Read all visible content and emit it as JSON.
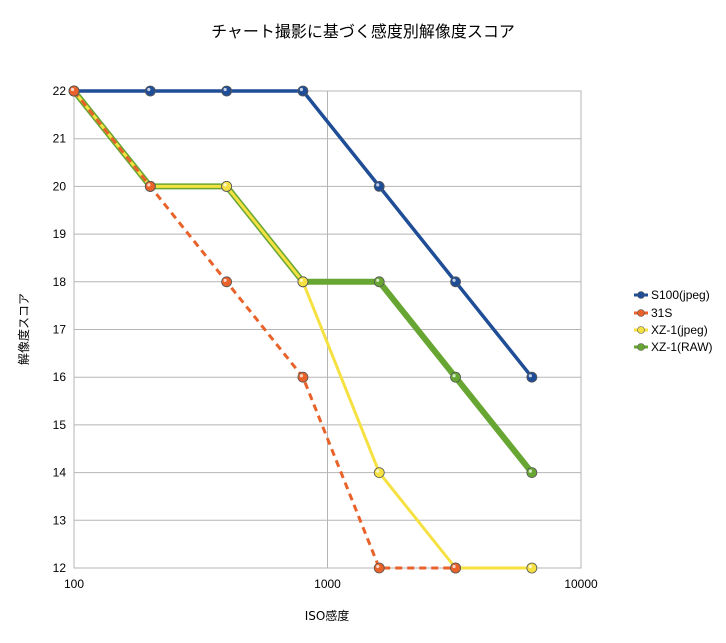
{
  "chart_data": {
    "type": "line",
    "title": "チャート撮影に基づく感度別解像度スコア",
    "xlabel": "ISO感度",
    "ylabel": "解像度スコア",
    "xscale": "log",
    "xlim": [
      100,
      10000
    ],
    "ylim": [
      12,
      22
    ],
    "xticks": [
      "100",
      "1000",
      "10000"
    ],
    "yticks": [
      "12",
      "13",
      "14",
      "15",
      "16",
      "17",
      "18",
      "19",
      "20",
      "21",
      "22"
    ],
    "grid": true,
    "legend_position": "right",
    "series": [
      {
        "name": "S100(jpeg)",
        "color": "#1f4e96",
        "style": "solid",
        "x": [
          100,
          200,
          400,
          800,
          1600,
          3200,
          6400
        ],
        "y": [
          22,
          22,
          22,
          22,
          20,
          18,
          16
        ]
      },
      {
        "name": "31S",
        "color": "#e8622a",
        "style": "dashed",
        "x": [
          100,
          200,
          400,
          800,
          1600,
          3200
        ],
        "y": [
          22,
          20,
          18,
          16,
          12,
          12
        ]
      },
      {
        "name": "XZ-1(jpeg)",
        "color": "#f5e142",
        "style": "solid",
        "x": [
          100,
          200,
          400,
          800,
          1600,
          3200,
          6400
        ],
        "y": [
          22,
          20,
          20,
          18,
          14,
          12,
          12
        ]
      },
      {
        "name": "XZ-1(RAW)",
        "color": "#67a632",
        "style": "solid",
        "x": [
          100,
          200,
          400,
          800,
          1600,
          3200,
          6400
        ],
        "y": [
          22,
          20,
          20,
          18,
          18,
          16,
          14
        ]
      }
    ]
  }
}
